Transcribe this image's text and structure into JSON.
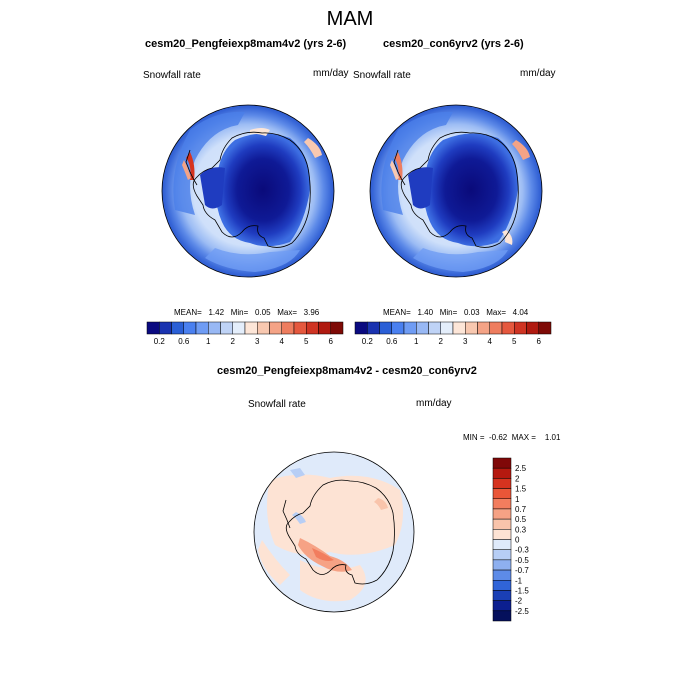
{
  "figure": {
    "title": "MAM"
  },
  "panels": [
    {
      "title": "cesm20_Pengfeiexp8mam4v2 (yrs 2-6)",
      "variable": "Snowfall rate",
      "units": "mm/day",
      "stats": {
        "mean_label": "MEAN=",
        "mean": "1.42",
        "min_label": "Min=",
        "min": "0.05",
        "max_label": "Max=",
        "max": "3.96"
      }
    },
    {
      "title": "cesm20_con6yrv2 (yrs 2-6)",
      "variable": "Snowfall rate",
      "units": "mm/day",
      "stats": {
        "mean_label": "MEAN=",
        "mean": "1.40",
        "min_label": "Min=",
        "min": "0.03",
        "max_label": "Max=",
        "max": "4.04"
      }
    },
    {
      "title": "cesm20_Pengfeiexp8mam4v2 - cesm20_con6yrv2",
      "variable": "Snowfall rate",
      "units": "mm/day",
      "stats": {
        "min_label": "MIN =",
        "min": "-0.62",
        "max_label": "MAX =",
        "max": "1.01"
      }
    }
  ],
  "colorbar_top": {
    "labels": [
      "0.2",
      "0.6",
      "1",
      "2",
      "3",
      "4",
      "5",
      "6"
    ],
    "colors": [
      "#0a0a80",
      "#1a33b0",
      "#2a5fd6",
      "#4a80f0",
      "#6f9cf4",
      "#98b8f4",
      "#bfd3f6",
      "#e4eefb",
      "#fde6d8",
      "#f8c8b0",
      "#f4a386",
      "#ee7d5f",
      "#e5583e",
      "#cf3423",
      "#b01a10",
      "#7e0a06"
    ]
  },
  "colorbar_diff": {
    "labels": [
      "2.5",
      "2",
      "1.5",
      "1",
      "0.7",
      "0.5",
      "0.3",
      "0",
      "-0.3",
      "-0.5",
      "-0.7",
      "-1",
      "-1.5",
      "-2",
      "-2.5"
    ],
    "colors": [
      "#800808",
      "#b5190f",
      "#d6331f",
      "#ea5638",
      "#f27d5e",
      "#f6a285",
      "#f9c4ab",
      "#fde3d4",
      "#dfeafa",
      "#b7cef5",
      "#8eb0f0",
      "#5d8be8",
      "#3064d8",
      "#1a3fb5",
      "#0c1f8f",
      "#05105c"
    ]
  }
}
